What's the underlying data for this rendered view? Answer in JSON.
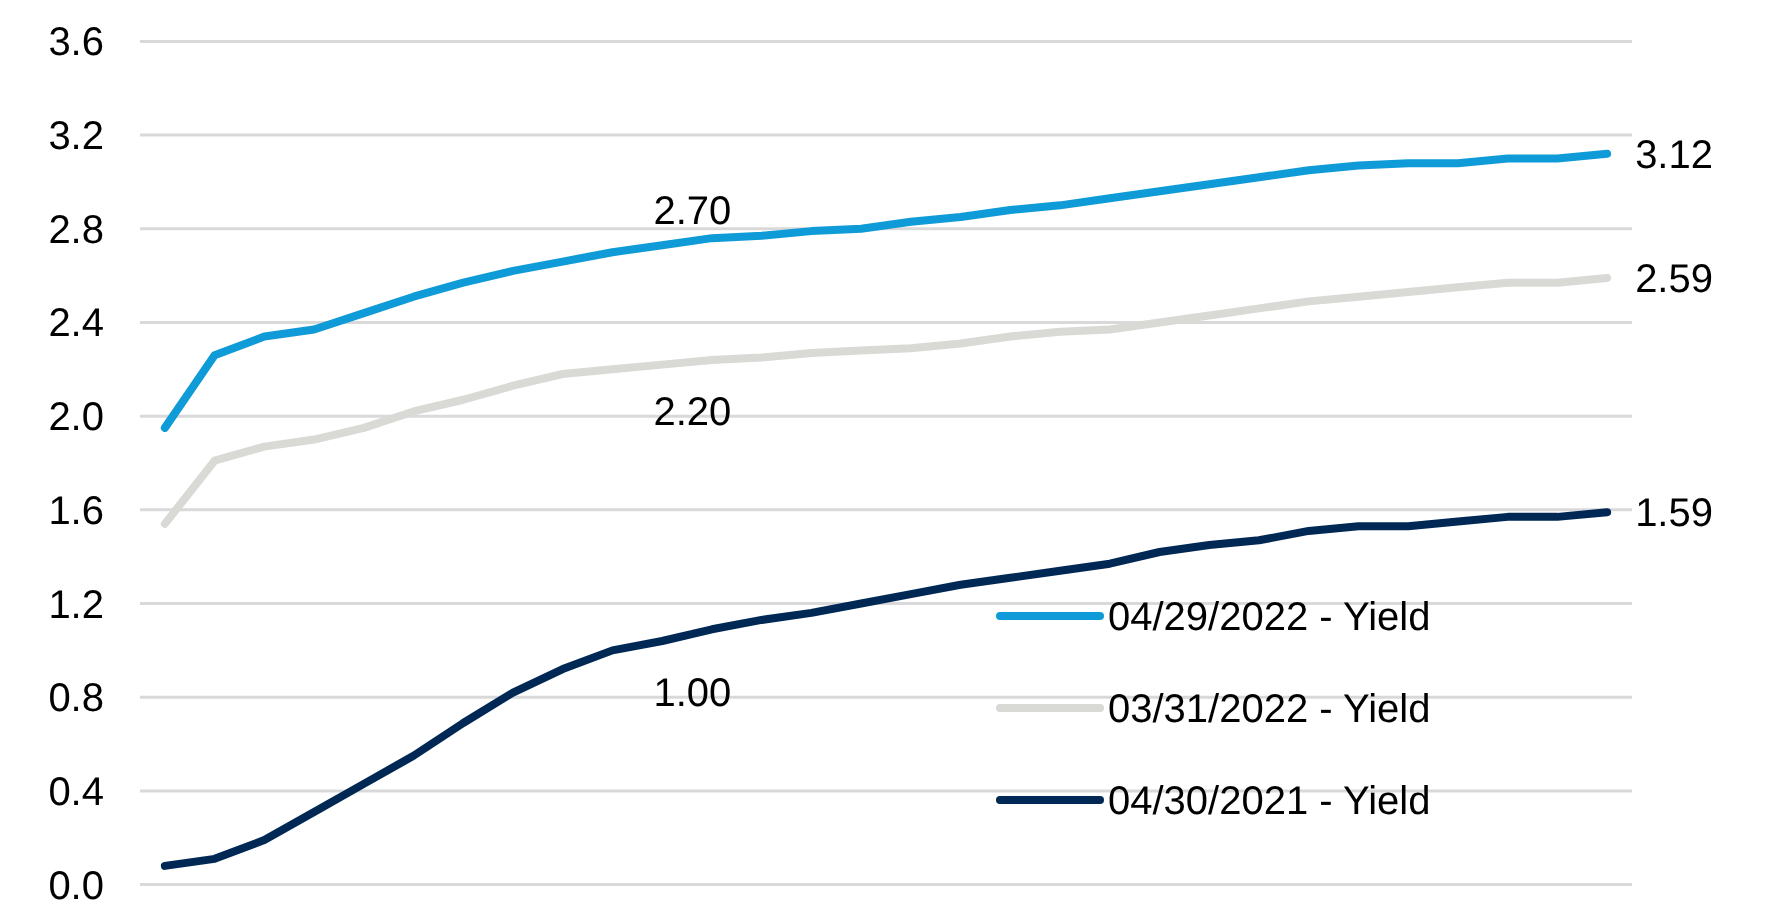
{
  "chart_data": {
    "type": "line",
    "categories": [
      null,
      null,
      null,
      null,
      null,
      null,
      null,
      null,
      null,
      null,
      null,
      null,
      null,
      null,
      null,
      null,
      null,
      null,
      null,
      null,
      null,
      null,
      null,
      null,
      null,
      null,
      null,
      null,
      null,
      null
    ],
    "ylim": [
      0,
      3.6
    ],
    "yticks": [
      {
        "value": 0,
        "label": "0.0"
      },
      {
        "value": 0.4,
        "label": "0.4"
      },
      {
        "value": 0.8,
        "label": "0.8"
      },
      {
        "value": 1.2,
        "label": "1.2"
      },
      {
        "value": 1.6,
        "label": "1.6"
      },
      {
        "value": 2,
        "label": "2.0"
      },
      {
        "value": 2.4,
        "label": "2.4"
      },
      {
        "value": 2.8,
        "label": "2.8"
      },
      {
        "value": 3.2,
        "label": "3.2"
      },
      {
        "value": 3.6,
        "label": "3.6"
      }
    ],
    "grid": "y",
    "legend": "bottom right",
    "marker": "none",
    "line_style": "solid",
    "series": [
      {
        "name": "04/29/2022 - Yield",
        "color": "#0f9bd7",
        "values": [
          1.95,
          2.26,
          2.34,
          2.37,
          2.44,
          2.51,
          2.57,
          2.62,
          2.66,
          2.7,
          2.73,
          2.76,
          2.77,
          2.79,
          2.8,
          2.83,
          2.85,
          2.88,
          2.9,
          2.93,
          2.96,
          2.99,
          3.02,
          3.05,
          3.07,
          3.08,
          3.08,
          3.1,
          3.1,
          3.12
        ],
        "value_labels": [
          null,
          null,
          null,
          null,
          null,
          null,
          null,
          null,
          null,
          "2.70",
          null,
          null,
          null,
          null,
          null,
          null,
          null,
          null,
          null,
          null,
          null,
          null,
          null,
          null,
          null,
          null,
          null,
          null,
          null,
          "3.12"
        ]
      },
      {
        "name": "03/31/2022 - Yield",
        "color": "#d9d9d6",
        "values": [
          1.54,
          1.81,
          1.87,
          1.9,
          1.95,
          2.02,
          2.07,
          2.13,
          2.18,
          2.2,
          2.22,
          2.24,
          2.25,
          2.27,
          2.28,
          2.29,
          2.31,
          2.34,
          2.36,
          2.37,
          2.4,
          2.43,
          2.46,
          2.49,
          2.51,
          2.53,
          2.55,
          2.57,
          2.57,
          2.59
        ],
        "value_labels": [
          null,
          null,
          null,
          null,
          null,
          null,
          null,
          null,
          null,
          "2.20",
          null,
          null,
          null,
          null,
          null,
          null,
          null,
          null,
          null,
          null,
          null,
          null,
          null,
          null,
          null,
          null,
          null,
          null,
          null,
          "2.59"
        ]
      },
      {
        "name": "04/30/2021 - Yield",
        "color": "#002855",
        "values": [
          0.08,
          0.11,
          0.19,
          0.31,
          0.43,
          0.55,
          0.69,
          0.82,
          0.92,
          1.0,
          1.04,
          1.09,
          1.13,
          1.16,
          1.2,
          1.24,
          1.28,
          1.31,
          1.34,
          1.37,
          1.42,
          1.45,
          1.47,
          1.51,
          1.53,
          1.53,
          1.55,
          1.57,
          1.57,
          1.59
        ],
        "value_labels": [
          null,
          null,
          null,
          null,
          null,
          null,
          null,
          null,
          null,
          "1.00",
          null,
          null,
          null,
          null,
          null,
          null,
          null,
          null,
          null,
          null,
          null,
          null,
          null,
          null,
          null,
          null,
          null,
          null,
          null,
          "1.59"
        ]
      }
    ]
  }
}
